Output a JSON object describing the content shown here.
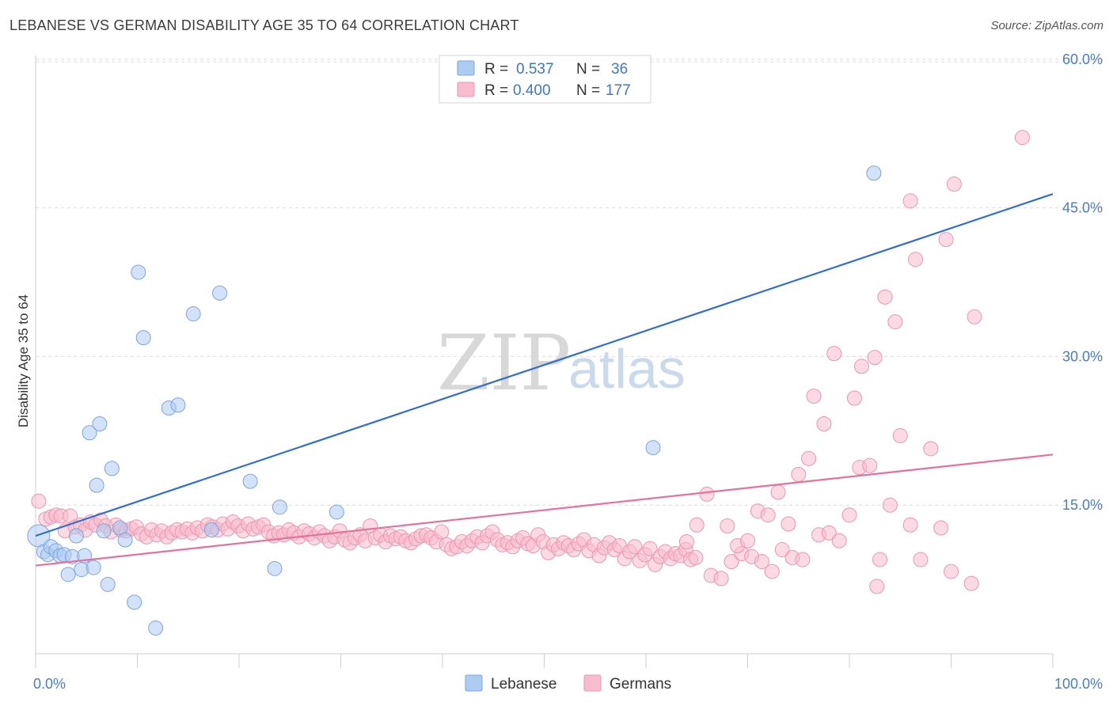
{
  "title": "LEBANESE VS GERMAN DISABILITY AGE 35 TO 64 CORRELATION CHART",
  "source": "Source: ZipAtlas.com",
  "watermark": {
    "zip": "ZIP",
    "atlas": "atlas"
  },
  "legend": {
    "rows": [
      {
        "r_label": "R =",
        "r_value": "0.537",
        "n_label": "N =",
        "n_value": "36"
      },
      {
        "r_label": "R =",
        "r_value": "0.400",
        "n_label": "N =",
        "n_value": "177"
      }
    ]
  },
  "bottom_legend": [
    "Lebanese",
    "Germans"
  ],
  "colors": {
    "lebanese_fill": "#aecbf2",
    "lebanese_stroke": "#7aa6e0",
    "lebanese_line": "#2e6fd0",
    "germans_fill": "#f7bccd",
    "germans_stroke": "#ee95b0",
    "germans_line": "#e8709a",
    "value_blue": "#3f76c9",
    "grid": "#dcdcdc"
  },
  "chart_data": {
    "type": "scatter",
    "title": "LEBANESE VS GERMAN DISABILITY AGE 35 TO 64 CORRELATION CHART",
    "xlabel": "",
    "ylabel": "Disability Age 35 to 64",
    "xlim": [
      0,
      100
    ],
    "ylim": [
      0,
      61.5
    ],
    "x_tick_labels": [
      "0.0%",
      "100.0%"
    ],
    "y_ticks": [
      15,
      30,
      45,
      60
    ],
    "y_tick_labels": [
      "15.0%",
      "30.0%",
      "45.0%",
      "60.0%"
    ],
    "series": [
      {
        "name": "Lebanese",
        "r": 0.537,
        "n": 36,
        "trend": {
          "x": [
            0,
            100
          ],
          "y": [
            11.9,
            46.4
          ]
        },
        "points": [
          [
            0.3,
            11.9
          ],
          [
            0.8,
            10.3
          ],
          [
            1.2,
            10.0
          ],
          [
            1.5,
            10.8
          ],
          [
            2.0,
            10.4
          ],
          [
            2.4,
            9.9
          ],
          [
            2.8,
            10.0
          ],
          [
            3.2,
            8.0
          ],
          [
            3.6,
            9.8
          ],
          [
            4.0,
            11.9
          ],
          [
            4.5,
            8.5
          ],
          [
            4.8,
            9.9
          ],
          [
            5.3,
            22.3
          ],
          [
            5.7,
            8.7
          ],
          [
            6.0,
            17.0
          ],
          [
            6.3,
            23.2
          ],
          [
            6.7,
            12.4
          ],
          [
            7.1,
            7.0
          ],
          [
            7.5,
            18.7
          ],
          [
            8.3,
            12.7
          ],
          [
            8.8,
            11.5
          ],
          [
            9.7,
            5.2
          ],
          [
            10.1,
            38.5
          ],
          [
            10.6,
            31.9
          ],
          [
            11.8,
            2.6
          ],
          [
            13.1,
            24.8
          ],
          [
            14.0,
            25.1
          ],
          [
            15.5,
            34.3
          ],
          [
            17.3,
            12.5
          ],
          [
            18.1,
            36.4
          ],
          [
            21.1,
            17.4
          ],
          [
            23.5,
            8.6
          ],
          [
            24.0,
            14.8
          ],
          [
            29.6,
            14.3
          ],
          [
            60.7,
            20.8
          ],
          [
            82.4,
            48.5
          ]
        ]
      },
      {
        "name": "Germans",
        "r": 0.4,
        "n": 177,
        "trend": {
          "x": [
            0,
            100
          ],
          "y": [
            8.9,
            20.1
          ]
        },
        "points": [
          [
            0.3,
            15.4
          ],
          [
            1.0,
            13.6
          ],
          [
            1.5,
            13.8
          ],
          [
            2.0,
            14.0
          ],
          [
            2.5,
            13.9
          ],
          [
            2.9,
            12.4
          ],
          [
            3.4,
            13.9
          ],
          [
            3.9,
            12.8
          ],
          [
            4.4,
            13.0
          ],
          [
            4.9,
            12.5
          ],
          [
            5.4,
            13.3
          ],
          [
            5.9,
            13.0
          ],
          [
            6.4,
            13.5
          ],
          [
            6.9,
            12.9
          ],
          [
            7.4,
            12.3
          ],
          [
            7.9,
            13.0
          ],
          [
            8.4,
            12.5
          ],
          [
            8.9,
            12.4
          ],
          [
            9.4,
            12.6
          ],
          [
            9.9,
            12.8
          ],
          [
            10.4,
            12.1
          ],
          [
            10.9,
            11.8
          ],
          [
            11.4,
            12.5
          ],
          [
            11.9,
            12.0
          ],
          [
            12.4,
            12.4
          ],
          [
            12.9,
            11.8
          ],
          [
            13.4,
            12.2
          ],
          [
            13.9,
            12.5
          ],
          [
            14.4,
            12.3
          ],
          [
            14.9,
            12.6
          ],
          [
            15.4,
            12.2
          ],
          [
            15.9,
            12.7
          ],
          [
            16.4,
            12.4
          ],
          [
            16.9,
            13.0
          ],
          [
            17.4,
            12.8
          ],
          [
            17.9,
            12.5
          ],
          [
            18.4,
            13.1
          ],
          [
            18.9,
            12.6
          ],
          [
            19.4,
            13.3
          ],
          [
            19.9,
            12.9
          ],
          [
            20.4,
            12.4
          ],
          [
            20.9,
            13.1
          ],
          [
            21.4,
            12.6
          ],
          [
            21.9,
            12.8
          ],
          [
            22.4,
            13.0
          ],
          [
            22.9,
            12.3
          ],
          [
            23.4,
            11.9
          ],
          [
            23.9,
            12.2
          ],
          [
            24.4,
            12.0
          ],
          [
            24.9,
            12.5
          ],
          [
            25.4,
            12.2
          ],
          [
            25.9,
            11.8
          ],
          [
            26.4,
            12.4
          ],
          [
            26.9,
            12.1
          ],
          [
            27.4,
            11.7
          ],
          [
            27.9,
            12.3
          ],
          [
            28.4,
            11.9
          ],
          [
            28.9,
            11.4
          ],
          [
            29.4,
            11.8
          ],
          [
            29.9,
            12.4
          ],
          [
            30.4,
            11.5
          ],
          [
            30.9,
            11.2
          ],
          [
            31.4,
            11.7
          ],
          [
            31.9,
            12.0
          ],
          [
            32.4,
            11.4
          ],
          [
            32.9,
            12.9
          ],
          [
            33.4,
            11.7
          ],
          [
            33.9,
            12.0
          ],
          [
            34.4,
            11.3
          ],
          [
            34.9,
            11.9
          ],
          [
            35.4,
            11.6
          ],
          [
            35.9,
            11.8
          ],
          [
            36.4,
            11.4
          ],
          [
            36.9,
            11.2
          ],
          [
            37.4,
            11.6
          ],
          [
            37.9,
            11.9
          ],
          [
            38.4,
            12.0
          ],
          [
            38.9,
            11.7
          ],
          [
            39.4,
            11.3
          ],
          [
            39.9,
            12.3
          ],
          [
            40.4,
            11.0
          ],
          [
            40.9,
            10.6
          ],
          [
            41.4,
            10.8
          ],
          [
            41.9,
            11.3
          ],
          [
            42.4,
            10.9
          ],
          [
            42.9,
            11.4
          ],
          [
            43.4,
            11.8
          ],
          [
            43.9,
            11.2
          ],
          [
            44.4,
            11.9
          ],
          [
            44.9,
            12.3
          ],
          [
            45.4,
            11.5
          ],
          [
            45.9,
            11.0
          ],
          [
            46.4,
            11.2
          ],
          [
            46.9,
            10.8
          ],
          [
            47.4,
            11.4
          ],
          [
            47.9,
            11.7
          ],
          [
            48.4,
            11.1
          ],
          [
            48.9,
            10.9
          ],
          [
            49.4,
            12.0
          ],
          [
            49.9,
            11.3
          ],
          [
            50.4,
            10.2
          ],
          [
            50.9,
            11.0
          ],
          [
            51.4,
            10.6
          ],
          [
            51.9,
            11.2
          ],
          [
            52.4,
            10.9
          ],
          [
            52.9,
            10.5
          ],
          [
            53.4,
            11.1
          ],
          [
            53.9,
            11.5
          ],
          [
            54.4,
            10.4
          ],
          [
            54.9,
            11.0
          ],
          [
            55.4,
            9.9
          ],
          [
            55.9,
            10.7
          ],
          [
            56.4,
            11.2
          ],
          [
            56.9,
            10.5
          ],
          [
            57.4,
            10.9
          ],
          [
            57.9,
            9.6
          ],
          [
            58.4,
            10.3
          ],
          [
            58.9,
            10.8
          ],
          [
            59.4,
            9.4
          ],
          [
            59.9,
            10.0
          ],
          [
            60.4,
            10.6
          ],
          [
            60.9,
            9.0
          ],
          [
            61.4,
            9.8
          ],
          [
            61.9,
            10.3
          ],
          [
            62.4,
            9.6
          ],
          [
            62.9,
            10.1
          ],
          [
            63.4,
            9.9
          ],
          [
            63.9,
            10.5
          ],
          [
            64.4,
            9.5
          ],
          [
            64.9,
            9.7
          ],
          [
            66.4,
            7.9
          ],
          [
            67.4,
            7.6
          ],
          [
            68.4,
            9.3
          ],
          [
            69.4,
            10.1
          ],
          [
            70.4,
            9.8
          ],
          [
            71.4,
            9.3
          ],
          [
            72.4,
            8.3
          ],
          [
            73.4,
            10.5
          ],
          [
            74.4,
            9.7
          ],
          [
            75.4,
            9.5
          ],
          [
            64.0,
            11.3
          ],
          [
            65.0,
            13.0
          ],
          [
            66.0,
            16.1
          ],
          [
            68.0,
            12.9
          ],
          [
            69.0,
            10.9
          ],
          [
            70.0,
            11.4
          ],
          [
            71.0,
            14.4
          ],
          [
            72.0,
            14.0
          ],
          [
            73.0,
            16.3
          ],
          [
            74.0,
            13.1
          ],
          [
            75.0,
            18.1
          ],
          [
            76.0,
            19.7
          ],
          [
            77.0,
            12.0
          ],
          [
            78.0,
            12.2
          ],
          [
            79.0,
            11.4
          ],
          [
            80.0,
            14.0
          ],
          [
            81.0,
            18.8
          ],
          [
            82.0,
            19.0
          ],
          [
            83.0,
            9.5
          ],
          [
            84.0,
            15.0
          ],
          [
            85.0,
            22.0
          ],
          [
            88.0,
            20.7
          ],
          [
            89.0,
            12.7
          ],
          [
            90.0,
            8.3
          ],
          [
            86.0,
            13.0
          ],
          [
            87.0,
            9.5
          ],
          [
            92.0,
            7.1
          ],
          [
            76.5,
            26.0
          ],
          [
            77.5,
            23.2
          ],
          [
            78.5,
            30.3
          ],
          [
            80.5,
            25.8
          ],
          [
            81.2,
            29.0
          ],
          [
            82.5,
            29.9
          ],
          [
            83.5,
            36.0
          ],
          [
            84.5,
            33.5
          ],
          [
            86.5,
            39.8
          ],
          [
            86.0,
            45.7
          ],
          [
            89.5,
            41.8
          ],
          [
            90.3,
            47.4
          ],
          [
            92.3,
            34.0
          ],
          [
            97.0,
            52.1
          ],
          [
            82.7,
            6.8
          ]
        ]
      }
    ]
  }
}
